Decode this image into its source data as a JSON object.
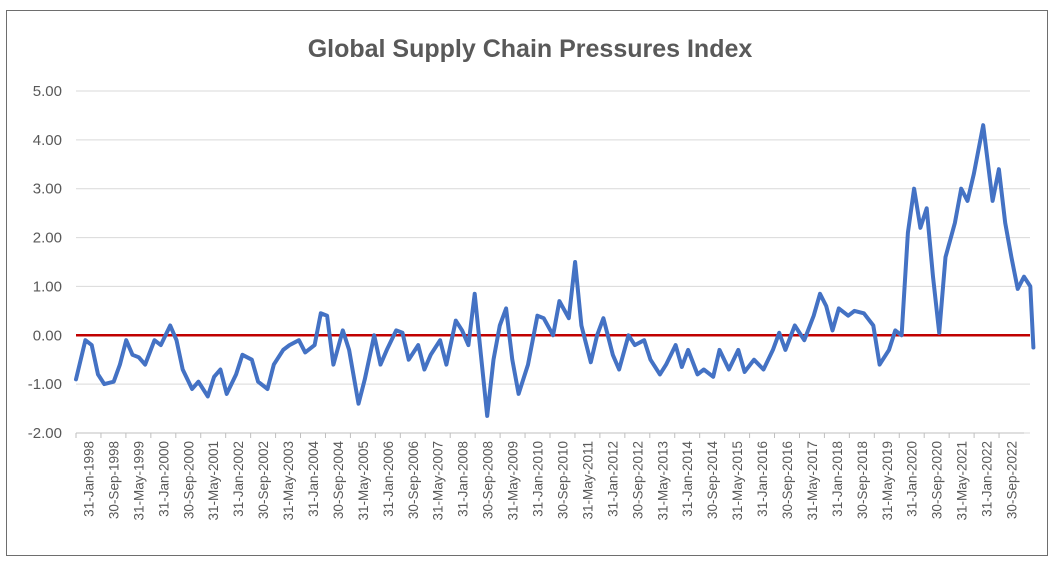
{
  "chart_data": {
    "type": "line",
    "title": "Global Supply Chain Pressures Index",
    "xlabel": "",
    "ylabel": "",
    "ylim": [
      -2.0,
      5.0
    ],
    "yticks": [
      "5.00",
      "4.00",
      "3.00",
      "2.00",
      "1.00",
      "0.00",
      "-1.00",
      "-2.00"
    ],
    "grid": true,
    "legend": "none",
    "x_tick_labels": [
      "31-Jan-1998",
      "30-Sep-1998",
      "31-May-1999",
      "31-Jan-2000",
      "30-Sep-2000",
      "31-May-2001",
      "31-Jan-2002",
      "30-Sep-2002",
      "31-May-2003",
      "31-Jan-2004",
      "30-Sep-2004",
      "31-May-2005",
      "31-Jan-2006",
      "30-Sep-2006",
      "31-May-2007",
      "31-Jan-2008",
      "30-Sep-2008",
      "31-May-2009",
      "31-Jan-2010",
      "30-Sep-2010",
      "31-May-2011",
      "31-Jan-2012",
      "30-Sep-2012",
      "31-May-2013",
      "31-Jan-2014",
      "30-Sep-2014",
      "31-May-2015",
      "31-Jan-2016",
      "30-Sep-2016",
      "31-May-2017",
      "31-Jan-2018",
      "30-Sep-2018",
      "31-May-2019",
      "31-Jan-2020",
      "30-Sep-2020",
      "31-May-2021",
      "31-Jan-2022",
      "30-Sep-2022"
    ],
    "x_range": [
      "1998-01",
      "2023-03"
    ],
    "reference_line": {
      "y": 0.0,
      "color": "#c00000"
    },
    "series": [
      {
        "color": "#4472c4",
        "points": [
          [
            "1998-01",
            -0.9
          ],
          [
            "1998-04",
            -0.1
          ],
          [
            "1998-06",
            -0.2
          ],
          [
            "1998-08",
            -0.8
          ],
          [
            "1998-10",
            -1.0
          ],
          [
            "1999-01",
            -0.95
          ],
          [
            "1999-03",
            -0.6
          ],
          [
            "1999-05",
            -0.1
          ],
          [
            "1999-07",
            -0.4
          ],
          [
            "1999-09",
            -0.45
          ],
          [
            "1999-11",
            -0.6
          ],
          [
            "2000-02",
            -0.1
          ],
          [
            "2000-04",
            -0.2
          ],
          [
            "2000-07",
            0.2
          ],
          [
            "2000-09",
            -0.1
          ],
          [
            "2000-11",
            -0.7
          ],
          [
            "2001-02",
            -1.1
          ],
          [
            "2001-04",
            -0.95
          ],
          [
            "2001-07",
            -1.25
          ],
          [
            "2001-09",
            -0.85
          ],
          [
            "2001-11",
            -0.7
          ],
          [
            "2002-01",
            -1.2
          ],
          [
            "2002-04",
            -0.8
          ],
          [
            "2002-06",
            -0.4
          ],
          [
            "2002-09",
            -0.5
          ],
          [
            "2002-11",
            -0.95
          ],
          [
            "2003-02",
            -1.1
          ],
          [
            "2003-04",
            -0.6
          ],
          [
            "2003-07",
            -0.3
          ],
          [
            "2003-09",
            -0.2
          ],
          [
            "2003-12",
            -0.1
          ],
          [
            "2004-02",
            -0.35
          ],
          [
            "2004-05",
            -0.2
          ],
          [
            "2004-07",
            0.45
          ],
          [
            "2004-09",
            0.4
          ],
          [
            "2004-11",
            -0.6
          ],
          [
            "2005-02",
            0.1
          ],
          [
            "2005-04",
            -0.3
          ],
          [
            "2005-07",
            -1.4
          ],
          [
            "2005-09",
            -0.9
          ],
          [
            "2005-12",
            0.0
          ],
          [
            "2006-02",
            -0.6
          ],
          [
            "2006-04",
            -0.3
          ],
          [
            "2006-07",
            0.1
          ],
          [
            "2006-09",
            0.05
          ],
          [
            "2006-11",
            -0.5
          ],
          [
            "2007-02",
            -0.2
          ],
          [
            "2007-04",
            -0.7
          ],
          [
            "2007-06",
            -0.4
          ],
          [
            "2007-09",
            -0.1
          ],
          [
            "2007-11",
            -0.6
          ],
          [
            "2008-02",
            0.3
          ],
          [
            "2008-04",
            0.1
          ],
          [
            "2008-06",
            -0.2
          ],
          [
            "2008-08",
            0.85
          ],
          [
            "2008-10",
            -0.4
          ],
          [
            "2008-12",
            -1.65
          ],
          [
            "2009-02",
            -0.5
          ],
          [
            "2009-04",
            0.2
          ],
          [
            "2009-06",
            0.55
          ],
          [
            "2009-08",
            -0.5
          ],
          [
            "2009-10",
            -1.2
          ],
          [
            "2010-01",
            -0.6
          ],
          [
            "2010-04",
            0.4
          ],
          [
            "2010-06",
            0.35
          ],
          [
            "2010-09",
            0.0
          ],
          [
            "2010-11",
            0.7
          ],
          [
            "2011-02",
            0.35
          ],
          [
            "2011-04",
            1.5
          ],
          [
            "2011-06",
            0.2
          ],
          [
            "2011-09",
            -0.55
          ],
          [
            "2011-11",
            0.0
          ],
          [
            "2012-01",
            0.35
          ],
          [
            "2012-04",
            -0.4
          ],
          [
            "2012-06",
            -0.7
          ],
          [
            "2012-09",
            0.0
          ],
          [
            "2012-11",
            -0.2
          ],
          [
            "2013-02",
            -0.1
          ],
          [
            "2013-04",
            -0.5
          ],
          [
            "2013-07",
            -0.8
          ],
          [
            "2013-09",
            -0.6
          ],
          [
            "2013-12",
            -0.2
          ],
          [
            "2014-02",
            -0.65
          ],
          [
            "2014-04",
            -0.3
          ],
          [
            "2014-07",
            -0.8
          ],
          [
            "2014-09",
            -0.7
          ],
          [
            "2014-12",
            -0.85
          ],
          [
            "2015-02",
            -0.3
          ],
          [
            "2015-05",
            -0.7
          ],
          [
            "2015-08",
            -0.3
          ],
          [
            "2015-10",
            -0.75
          ],
          [
            "2016-01",
            -0.5
          ],
          [
            "2016-04",
            -0.7
          ],
          [
            "2016-07",
            -0.3
          ],
          [
            "2016-09",
            0.05
          ],
          [
            "2016-11",
            -0.3
          ],
          [
            "2017-02",
            0.2
          ],
          [
            "2017-05",
            -0.1
          ],
          [
            "2017-08",
            0.4
          ],
          [
            "2017-10",
            0.85
          ],
          [
            "2017-12",
            0.6
          ],
          [
            "2018-02",
            0.1
          ],
          [
            "2018-04",
            0.55
          ],
          [
            "2018-07",
            0.4
          ],
          [
            "2018-09",
            0.5
          ],
          [
            "2018-12",
            0.45
          ],
          [
            "2019-03",
            0.2
          ],
          [
            "2019-05",
            -0.6
          ],
          [
            "2019-08",
            -0.3
          ],
          [
            "2019-10",
            0.1
          ],
          [
            "2019-12",
            0.0
          ],
          [
            "2020-02",
            2.1
          ],
          [
            "2020-04",
            3.0
          ],
          [
            "2020-06",
            2.2
          ],
          [
            "2020-08",
            2.6
          ],
          [
            "2020-10",
            1.2
          ],
          [
            "2020-12",
            0.05
          ],
          [
            "2021-02",
            1.6
          ],
          [
            "2021-05",
            2.3
          ],
          [
            "2021-07",
            3.0
          ],
          [
            "2021-09",
            2.75
          ],
          [
            "2021-11",
            3.3
          ],
          [
            "2022-02",
            4.3
          ],
          [
            "2022-05",
            2.75
          ],
          [
            "2022-07",
            3.4
          ],
          [
            "2022-09",
            2.3
          ],
          [
            "2022-11",
            1.6
          ],
          [
            "2023-01",
            0.95
          ],
          [
            "2023-03",
            1.2
          ],
          [
            "2023-05",
            1.0
          ],
          [
            "2023-06",
            -0.25
          ]
        ]
      }
    ]
  }
}
